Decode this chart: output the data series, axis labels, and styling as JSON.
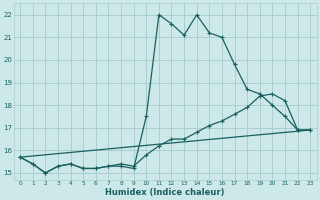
{
  "xlabel": "Humidex (Indice chaleur)",
  "bg_color": "#cce8e8",
  "grid_color": "#aacece",
  "line_color": "#1a6060",
  "xlim": [
    -0.5,
    23.5
  ],
  "ylim": [
    14.7,
    22.5
  ],
  "xticks": [
    0,
    1,
    2,
    3,
    4,
    5,
    6,
    7,
    8,
    9,
    10,
    11,
    12,
    13,
    14,
    15,
    16,
    17,
    18,
    19,
    20,
    21,
    22,
    23
  ],
  "yticks": [
    15,
    16,
    17,
    18,
    19,
    20,
    21,
    22
  ],
  "line1_x": [
    0,
    1,
    2,
    3,
    4,
    5,
    6,
    7,
    8,
    9,
    10,
    11,
    12,
    13,
    14,
    15,
    16,
    17,
    18,
    19,
    20,
    21,
    22,
    23
  ],
  "line1_y": [
    15.7,
    15.4,
    15.0,
    15.3,
    15.4,
    15.2,
    15.2,
    15.3,
    15.3,
    15.2,
    17.5,
    22.0,
    21.6,
    21.1,
    22.0,
    21.2,
    21.0,
    19.8,
    18.7,
    18.5,
    18.0,
    17.5,
    16.9,
    16.9
  ],
  "line2_x": [
    0,
    1,
    2,
    3,
    4,
    5,
    6,
    7,
    8,
    9,
    10,
    11,
    12,
    13,
    14,
    15,
    16,
    17,
    18,
    19,
    20,
    21,
    22,
    23
  ],
  "line2_y": [
    15.7,
    15.4,
    15.0,
    15.3,
    15.4,
    15.2,
    15.2,
    15.3,
    15.4,
    15.3,
    15.8,
    16.2,
    16.5,
    16.5,
    16.8,
    17.1,
    17.3,
    17.6,
    17.9,
    18.4,
    18.5,
    18.2,
    16.9,
    16.9
  ],
  "line3_x": [
    0,
    23
  ],
  "line3_y": [
    15.7,
    16.9
  ],
  "xtick_labels": [
    "0",
    "1",
    "2",
    "3",
    "4",
    "5",
    "6",
    "7",
    "8",
    "9",
    "10",
    "11",
    "12",
    "13",
    "14",
    "15",
    "16",
    "17",
    "18",
    "19",
    "20",
    "21",
    "22",
    "23"
  ]
}
